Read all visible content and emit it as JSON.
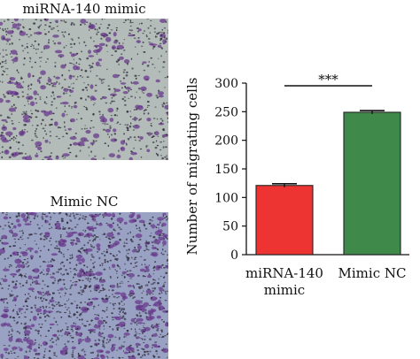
{
  "panels": {
    "top_label": "miRNA-140 mimic",
    "bottom_label": "Mimic NC"
  },
  "colors": {
    "top_background": "#b3bcb8",
    "bottom_background": "#9aa2c4",
    "cell_stain": "#6a3a8e",
    "bar_mimic": "#ee3333",
    "bar_nc": "#3f8a4a",
    "axis": "#111111"
  },
  "chart_data": {
    "type": "bar",
    "categories": [
      "miRNA-140 mimic",
      "Mimic NC"
    ],
    "category_lines": [
      [
        "miRNA-140",
        "mimic"
      ],
      [
        "Mimic NC"
      ]
    ],
    "values": [
      121,
      249
    ],
    "errors": [
      3,
      3
    ],
    "ylabel": "Number of migrating cells",
    "ylim": [
      0,
      300
    ],
    "yticks": [
      0,
      50,
      100,
      150,
      200,
      250,
      300
    ],
    "significance": "***",
    "grid": false
  }
}
